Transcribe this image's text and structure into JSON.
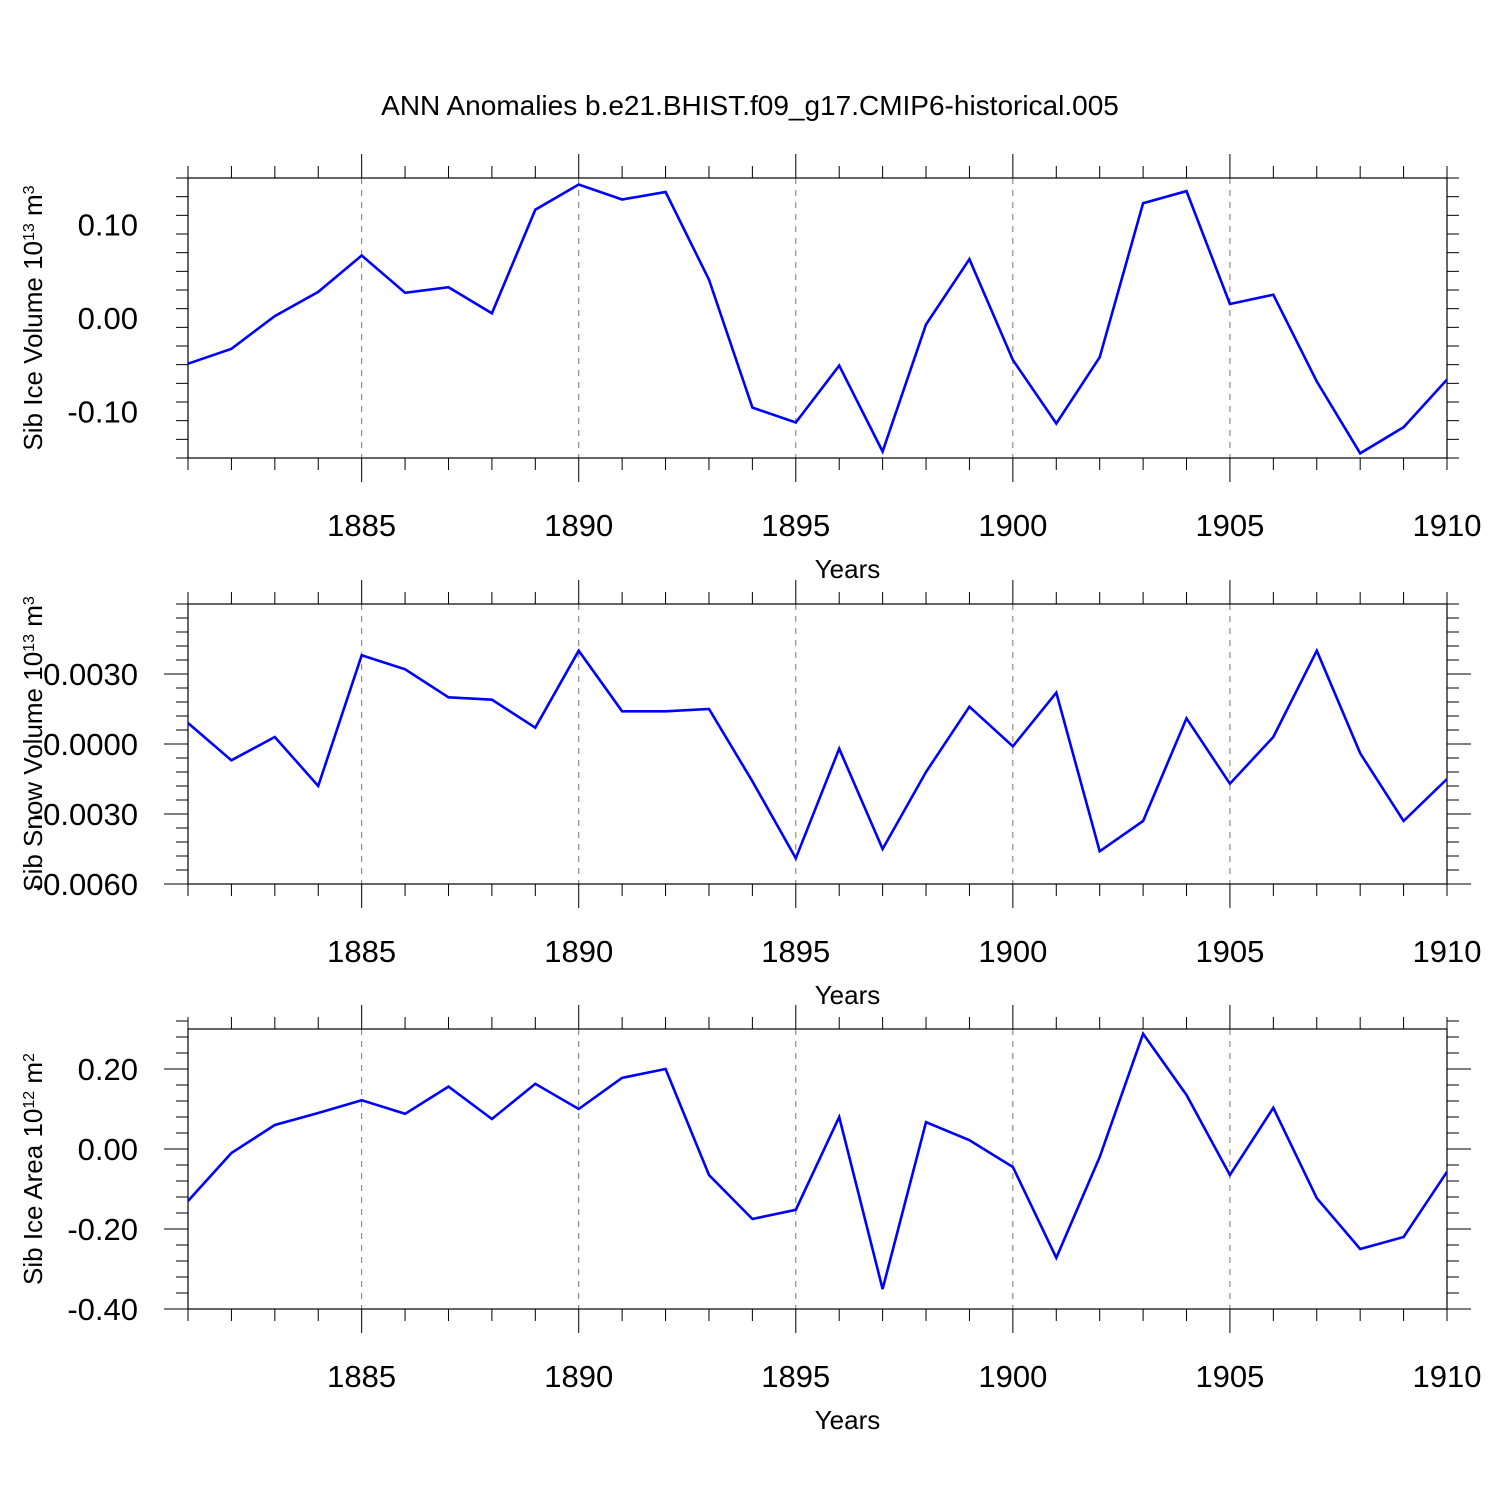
{
  "title": "ANN Anomalies b.e21.BHIST.f09_g17.CMIP6-historical.005",
  "line_color": "#0000ff",
  "chart_data": [
    {
      "type": "line",
      "title": "",
      "xlabel": "Years",
      "ylabel": "Sib Ice Volume 10",
      "ylabel_exp": "13",
      "ylabel_unit": " m",
      "ylabel_unit_exp": "3",
      "xlim": [
        1881,
        1910
      ],
      "ylim": [
        -0.15,
        0.15
      ],
      "yticks": [
        -0.1,
        0.0,
        0.1
      ],
      "ytick_labels": [
        "-0.10",
        "0.00",
        "0.10"
      ],
      "xticks": [
        1885,
        1890,
        1895,
        1900,
        1905,
        1910
      ],
      "xtick_labels": [
        "1885",
        "1890",
        "1895",
        "1900",
        "1905",
        "1910"
      ],
      "grid": "dashed vertical at major x ticks",
      "x": [
        1881,
        1882,
        1883,
        1884,
        1885,
        1886,
        1887,
        1888,
        1889,
        1890,
        1891,
        1892,
        1893,
        1894,
        1895,
        1896,
        1897,
        1898,
        1899,
        1900,
        1901,
        1902,
        1903,
        1904,
        1905,
        1906,
        1907,
        1908,
        1909,
        1910
      ],
      "series": [
        {
          "values": [
            -0.049,
            -0.033,
            0.002,
            0.028,
            0.067,
            0.027,
            0.033,
            0.005,
            0.116,
            0.143,
            0.127,
            0.135,
            0.041,
            -0.096,
            -0.112,
            -0.051,
            -0.143,
            -0.007,
            0.063,
            -0.045,
            -0.113,
            -0.042,
            0.123,
            0.136,
            0.015,
            0.025,
            -0.068,
            -0.145,
            -0.117,
            -0.066
          ]
        }
      ]
    },
    {
      "type": "line",
      "title": "",
      "xlabel": "Years",
      "ylabel": "Sib Snow Volume 10",
      "ylabel_exp": "13",
      "ylabel_unit": " m",
      "ylabel_unit_exp": "3",
      "xlim": [
        1881,
        1910
      ],
      "ylim": [
        -0.006,
        0.006
      ],
      "yticks": [
        -0.006,
        -0.003,
        0.0,
        0.003
      ],
      "ytick_labels": [
        "-0.0060",
        "-0.0030",
        "0.0000",
        "0.0030"
      ],
      "xticks": [
        1885,
        1890,
        1895,
        1900,
        1905,
        1910
      ],
      "xtick_labels": [
        "1885",
        "1890",
        "1895",
        "1900",
        "1905",
        "1910"
      ],
      "grid": "dashed vertical at major x ticks",
      "x": [
        1881,
        1882,
        1883,
        1884,
        1885,
        1886,
        1887,
        1888,
        1889,
        1890,
        1891,
        1892,
        1893,
        1894,
        1895,
        1896,
        1897,
        1898,
        1899,
        1900,
        1901,
        1902,
        1903,
        1904,
        1905,
        1906,
        1907,
        1908,
        1909,
        1910
      ],
      "series": [
        {
          "values": [
            0.0009,
            -0.0007,
            0.0003,
            -0.0018,
            0.0038,
            0.0032,
            0.002,
            0.0019,
            0.0007,
            0.004,
            0.0014,
            0.0014,
            0.0015,
            -0.0016,
            -0.0049,
            -0.0002,
            -0.0045,
            -0.0012,
            0.0016,
            -0.0001,
            0.0022,
            -0.0046,
            -0.0033,
            0.0011,
            -0.0017,
            0.0003,
            0.004,
            -0.0004,
            -0.0033,
            -0.0015
          ]
        }
      ]
    },
    {
      "type": "line",
      "title": "",
      "xlabel": "Years",
      "ylabel": "Sib Ice Area 10",
      "ylabel_exp": "12",
      "ylabel_unit": " m",
      "ylabel_unit_exp": "2",
      "xlim": [
        1881,
        1910
      ],
      "ylim": [
        -0.4,
        0.3
      ],
      "yticks": [
        -0.4,
        -0.2,
        0.0,
        0.2
      ],
      "ytick_labels": [
        "-0.40",
        "-0.20",
        "0.00",
        "0.20"
      ],
      "xticks": [
        1885,
        1890,
        1895,
        1900,
        1905,
        1910
      ],
      "xtick_labels": [
        "1885",
        "1890",
        "1895",
        "1900",
        "1905",
        "1910"
      ],
      "grid": "dashed vertical at major x ticks",
      "x": [
        1881,
        1882,
        1883,
        1884,
        1885,
        1886,
        1887,
        1888,
        1889,
        1890,
        1891,
        1892,
        1893,
        1894,
        1895,
        1896,
        1897,
        1898,
        1899,
        1900,
        1901,
        1902,
        1903,
        1904,
        1905,
        1906,
        1907,
        1908,
        1909,
        1910
      ],
      "series": [
        {
          "values": [
            -0.13,
            -0.01,
            0.06,
            0.09,
            0.122,
            0.088,
            0.156,
            0.075,
            0.163,
            0.1,
            0.178,
            0.2,
            -0.065,
            -0.175,
            -0.152,
            0.08,
            -0.35,
            0.067,
            0.022,
            -0.045,
            -0.272,
            -0.02,
            0.288,
            0.135,
            -0.065,
            0.103,
            -0.123,
            -0.25,
            -0.22,
            -0.057
          ]
        }
      ]
    }
  ]
}
